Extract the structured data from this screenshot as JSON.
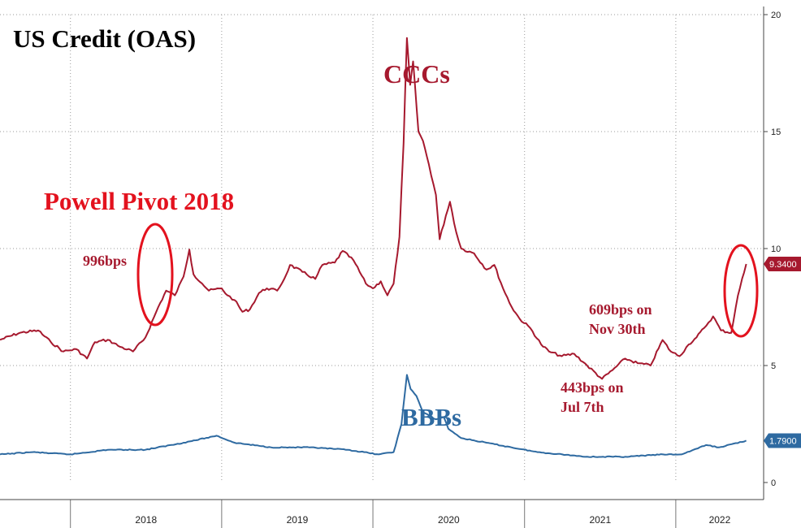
{
  "chart_data": {
    "type": "line",
    "title": "US Credit (OAS)",
    "xlabel": "",
    "ylabel": "",
    "ylim": [
      0,
      20
    ],
    "y_ticks": [
      0,
      5,
      10,
      15,
      20
    ],
    "x_ticks": [
      "2018",
      "2019",
      "2020",
      "2021",
      "2022"
    ],
    "grid": true,
    "series": [
      {
        "name": "CCCs",
        "color": "#a6192e",
        "last_value_label": "9.3400",
        "points": [
          [
            "2017-07-15",
            6.1
          ],
          [
            "2017-09-01",
            6.4
          ],
          [
            "2017-10-15",
            6.5
          ],
          [
            "2017-11-15",
            6.0
          ],
          [
            "2017-12-15",
            5.6
          ],
          [
            "2018-01-15",
            5.7
          ],
          [
            "2018-02-10",
            5.3
          ],
          [
            "2018-03-01",
            6.0
          ],
          [
            "2018-04-01",
            6.1
          ],
          [
            "2018-05-01",
            5.8
          ],
          [
            "2018-06-01",
            5.6
          ],
          [
            "2018-07-01",
            6.2
          ],
          [
            "2018-08-01",
            7.5
          ],
          [
            "2018-08-20",
            8.2
          ],
          [
            "2018-09-10",
            8.0
          ],
          [
            "2018-10-01",
            8.8
          ],
          [
            "2018-10-15",
            9.96
          ],
          [
            "2018-10-25",
            8.9
          ],
          [
            "2018-11-15",
            8.5
          ],
          [
            "2018-12-01",
            8.2
          ],
          [
            "2019-01-01",
            8.3
          ],
          [
            "2019-01-15",
            8.0
          ],
          [
            "2019-02-01",
            7.8
          ],
          [
            "2019-02-20",
            7.3
          ],
          [
            "2019-03-10",
            7.4
          ],
          [
            "2019-04-01",
            8.1
          ],
          [
            "2019-04-20",
            8.3
          ],
          [
            "2019-05-15",
            8.2
          ],
          [
            "2019-06-01",
            8.7
          ],
          [
            "2019-06-15",
            9.3
          ],
          [
            "2019-07-15",
            9.0
          ],
          [
            "2019-08-15",
            8.7
          ],
          [
            "2019-09-01",
            9.3
          ],
          [
            "2019-10-01",
            9.4
          ],
          [
            "2019-10-20",
            9.9
          ],
          [
            "2019-11-15",
            9.5
          ],
          [
            "2019-12-15",
            8.5
          ],
          [
            "2020-01-01",
            8.3
          ],
          [
            "2020-01-20",
            8.6
          ],
          [
            "2020-02-05",
            8.0
          ],
          [
            "2020-02-20",
            8.5
          ],
          [
            "2020-03-05",
            10.5
          ],
          [
            "2020-03-15",
            14.5
          ],
          [
            "2020-03-23",
            19.0
          ],
          [
            "2020-03-31",
            17.0
          ],
          [
            "2020-04-07",
            18.0
          ],
          [
            "2020-04-20",
            15.0
          ],
          [
            "2020-05-01",
            14.6
          ],
          [
            "2020-05-15",
            13.6
          ],
          [
            "2020-06-01",
            12.3
          ],
          [
            "2020-06-10",
            10.4
          ],
          [
            "2020-06-25",
            11.4
          ],
          [
            "2020-07-05",
            12.0
          ],
          [
            "2020-07-20",
            10.7
          ],
          [
            "2020-08-01",
            10.0
          ],
          [
            "2020-09-01",
            9.8
          ],
          [
            "2020-10-01",
            9.1
          ],
          [
            "2020-10-20",
            9.3
          ],
          [
            "2020-11-10",
            8.3
          ],
          [
            "2020-12-01",
            7.5
          ],
          [
            "2020-12-20",
            7.0
          ],
          [
            "2021-01-15",
            6.6
          ],
          [
            "2021-02-10",
            5.9
          ],
          [
            "2021-03-01",
            5.6
          ],
          [
            "2021-04-01",
            5.4
          ],
          [
            "2021-05-01",
            5.5
          ],
          [
            "2021-06-01",
            5.0
          ],
          [
            "2021-07-07",
            4.43
          ],
          [
            "2021-08-01",
            4.8
          ],
          [
            "2021-09-01",
            5.3
          ],
          [
            "2021-10-01",
            5.1
          ],
          [
            "2021-11-01",
            5.0
          ],
          [
            "2021-11-30",
            6.09
          ],
          [
            "2021-12-20",
            5.6
          ],
          [
            "2022-01-10",
            5.4
          ],
          [
            "2022-02-01",
            5.9
          ],
          [
            "2022-02-20",
            6.2
          ],
          [
            "2022-03-10",
            6.6
          ],
          [
            "2022-04-01",
            7.1
          ],
          [
            "2022-04-20",
            6.5
          ],
          [
            "2022-05-15",
            6.4
          ],
          [
            "2022-05-31",
            8.0
          ],
          [
            "2022-06-20",
            9.34
          ]
        ]
      },
      {
        "name": "BBBs",
        "color": "#2e6aa1",
        "last_value_label": "1.7900",
        "points": [
          [
            "2017-07-15",
            1.2
          ],
          [
            "2017-10-01",
            1.3
          ],
          [
            "2018-01-01",
            1.2
          ],
          [
            "2018-04-01",
            1.4
          ],
          [
            "2018-07-01",
            1.4
          ],
          [
            "2018-10-01",
            1.7
          ],
          [
            "2018-12-20",
            2.0
          ],
          [
            "2019-02-01",
            1.7
          ],
          [
            "2019-05-01",
            1.5
          ],
          [
            "2019-08-01",
            1.5
          ],
          [
            "2019-11-01",
            1.4
          ],
          [
            "2020-01-15",
            1.2
          ],
          [
            "2020-02-20",
            1.3
          ],
          [
            "2020-03-10",
            2.5
          ],
          [
            "2020-03-23",
            4.6
          ],
          [
            "2020-04-01",
            4.0
          ],
          [
            "2020-04-15",
            3.7
          ],
          [
            "2020-05-01",
            3.0
          ],
          [
            "2020-06-01",
            2.7
          ],
          [
            "2020-06-20",
            2.8
          ],
          [
            "2020-07-01",
            2.3
          ],
          [
            "2020-08-01",
            1.9
          ],
          [
            "2020-10-01",
            1.7
          ],
          [
            "2020-12-01",
            1.5
          ],
          [
            "2021-02-01",
            1.3
          ],
          [
            "2021-06-01",
            1.1
          ],
          [
            "2021-09-01",
            1.1
          ],
          [
            "2021-12-01",
            1.2
          ],
          [
            "2022-01-15",
            1.2
          ],
          [
            "2022-03-15",
            1.6
          ],
          [
            "2022-04-15",
            1.5
          ],
          [
            "2022-06-20",
            1.79
          ]
        ]
      }
    ],
    "annotations": {
      "series_label_ccc": "CCCs",
      "series_label_bbb": "BBBs",
      "powell": "Powell Pivot 2018",
      "peak_2018": "996bps",
      "low_2021_line1": "443bps on",
      "low_2021_line2": "Jul 7th",
      "nov_line1": "609bps on",
      "nov_line2": "Nov 30th"
    }
  }
}
